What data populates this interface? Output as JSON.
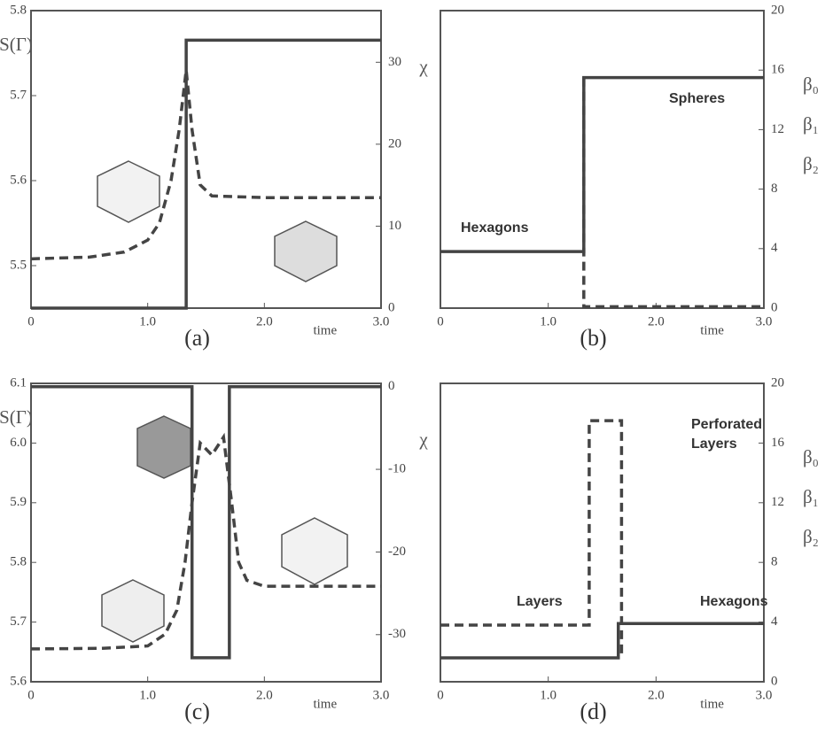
{
  "chart_data": [
    {
      "type": "line",
      "caption": "(a)",
      "x_label": "time",
      "xlim": [
        0,
        3
      ],
      "xticks": [
        0,
        {
          "value": 1,
          "label": "1.0"
        },
        {
          "value": 2,
          "label": "2.0"
        },
        {
          "value": 3,
          "label": "3.0"
        }
      ],
      "ylim": [
        5.45,
        5.8
      ],
      "yticks": [
        5.5,
        5.6,
        5.7,
        5.8
      ],
      "y2lim": [
        0,
        36.3
      ],
      "y2ticks": [
        0,
        10,
        20,
        30
      ],
      "series": [
        {
          "name": "S(Γ)",
          "style": "dashed",
          "color": "#444",
          "x": [
            0,
            0.5,
            0.8,
            1.0,
            1.1,
            1.2,
            1.27,
            1.33,
            1.38,
            1.45,
            1.55,
            2.0,
            3.0
          ],
          "values": [
            5.508,
            5.51,
            5.516,
            5.53,
            5.55,
            5.6,
            5.66,
            5.73,
            5.66,
            5.595,
            5.582,
            5.58,
            5.58
          ]
        },
        {
          "name": "χ",
          "axis": "y2",
          "style": "solid",
          "color": "#444",
          "x": [
            0,
            1.33,
            1.33,
            3.0
          ],
          "values": [
            0,
            0,
            32.7,
            32.7
          ]
        }
      ],
      "annotations": []
    },
    {
      "type": "line",
      "caption": "(b)",
      "x_label": "time",
      "xlim": [
        0,
        3
      ],
      "xticks": [
        0,
        {
          "value": 1,
          "label": "1.0"
        },
        {
          "value": 2,
          "label": "2.0"
        },
        {
          "value": 3,
          "label": "3.0"
        }
      ],
      "y2lim": [
        0,
        20
      ],
      "y2ticks": [
        0,
        4,
        8,
        12,
        16,
        20
      ],
      "y2_labels": [
        "β₀",
        "β₁",
        "β₂"
      ],
      "series": [
        {
          "axis": "y2",
          "style": "solid",
          "color": "#444",
          "x": [
            0,
            1.33,
            1.33,
            3.0
          ],
          "values": [
            3.8,
            3.8,
            15.5,
            15.5
          ]
        },
        {
          "axis": "y2",
          "style": "dashed",
          "color": "#444",
          "x": [
            1.33,
            1.33,
            3.0
          ],
          "values": [
            15.5,
            0.1,
            0.1
          ]
        }
      ],
      "annotations": [
        "Hexagons",
        "Spheres"
      ]
    },
    {
      "type": "line",
      "caption": "(c)",
      "x_label": "time",
      "xlim": [
        0,
        3
      ],
      "xticks": [
        {
          "value": 0,
          "label": "0"
        },
        {
          "value": 1,
          "label": "1.0"
        },
        {
          "value": 2,
          "label": "2.0"
        },
        {
          "value": 3,
          "label": "3.0"
        }
      ],
      "ylim": [
        5.6,
        6.1
      ],
      "yticks": [
        5.6,
        5.7,
        5.8,
        5.9,
        {
          "value": 6,
          "label": "6.0"
        },
        6.1
      ],
      "y2lim": [
        -35.7,
        0.4
      ],
      "y2ticks": [
        0,
        -10,
        -20,
        -30
      ],
      "series": [
        {
          "name": "S(Γ)",
          "style": "dashed",
          "color": "#444",
          "x": [
            0,
            0.6,
            1.0,
            1.15,
            1.25,
            1.32,
            1.38,
            1.45,
            1.55,
            1.65,
            1.72,
            1.78,
            1.85,
            2.0,
            3.0
          ],
          "values": [
            5.655,
            5.656,
            5.66,
            5.68,
            5.72,
            5.8,
            5.9,
            6.0,
            5.98,
            6.01,
            5.9,
            5.8,
            5.77,
            5.76,
            5.76
          ]
        },
        {
          "name": "χ",
          "axis": "y2",
          "style": "solid",
          "color": "#444",
          "x": [
            0,
            1.38,
            1.38,
            1.7,
            1.7,
            3.0
          ],
          "values": [
            0,
            0,
            -32.8,
            -32.8,
            0,
            0
          ]
        }
      ],
      "annotations": []
    },
    {
      "type": "line",
      "caption": "(d)",
      "x_label": "time",
      "xlim": [
        0,
        3
      ],
      "xticks": [
        0,
        {
          "value": 1,
          "label": "1.0"
        },
        {
          "value": 2,
          "label": "2.0"
        },
        {
          "value": 3,
          "label": "3.0"
        }
      ],
      "y2lim": [
        0,
        20
      ],
      "y2ticks": [
        0,
        4,
        8,
        12,
        16,
        20
      ],
      "y2_labels": [
        "β₀",
        "β₁",
        "β₂"
      ],
      "series": [
        {
          "axis": "y2",
          "style": "solid",
          "color": "#444",
          "x": [
            0,
            1.65,
            1.65,
            3.0
          ],
          "values": [
            1.6,
            1.6,
            3.9,
            3.9
          ]
        },
        {
          "axis": "y2",
          "style": "dashed",
          "color": "#444",
          "x": [
            0,
            1.38,
            1.38,
            1.68,
            1.68
          ],
          "values": [
            3.8,
            3.8,
            17.5,
            17.5,
            1.6
          ]
        }
      ],
      "annotations": [
        "Layers",
        "Perforated",
        "Layers",
        "Hexagons"
      ]
    }
  ]
}
